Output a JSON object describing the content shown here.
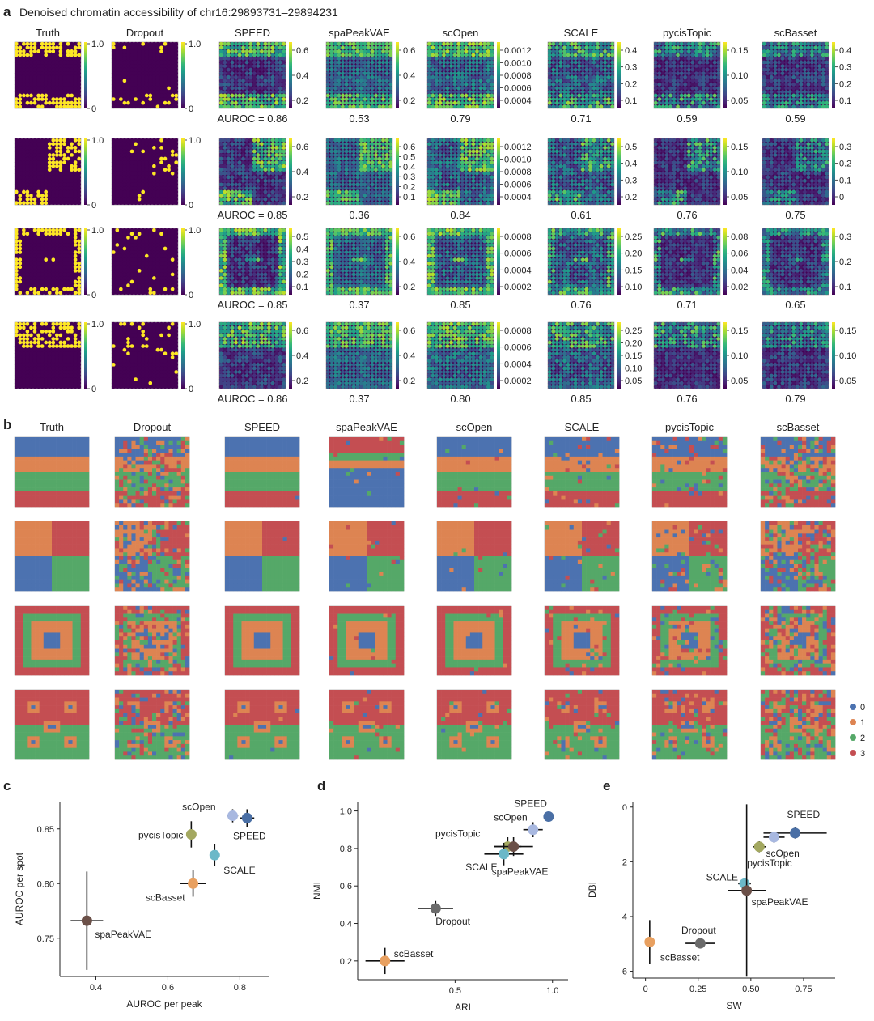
{
  "panel_a": {
    "label": "a",
    "title": "Denoised chromatin accessibility of chr16:29893731–29894231",
    "methods": [
      "Truth",
      "Dropout",
      "SPEED",
      "spaPeakVAE",
      "scOpen",
      "SCALE",
      "pycisTopic",
      "scBasset"
    ],
    "patterns": [
      "stripes",
      "quadrants",
      "nested-squares",
      "spots"
    ],
    "colorbars": [
      [
        [
          "1.0",
          "0"
        ],
        [
          "1.0",
          "0"
        ],
        [
          "0.6",
          "0.4",
          "0.2"
        ],
        [
          "0.6",
          "0.4",
          "0.2"
        ],
        [
          "0.0012",
          "0.0010",
          "0.0008",
          "0.0006",
          "0.0004"
        ],
        [
          "0.4",
          "0.3",
          "0.2",
          "0.1"
        ],
        [
          "0.15",
          "0.10",
          "0.05"
        ],
        [
          "0.4",
          "0.3",
          "0.2",
          "0.1"
        ]
      ],
      [
        [
          "1.0",
          "0"
        ],
        [
          "1.0",
          "0"
        ],
        [
          "0.6",
          "0.4",
          "0.2"
        ],
        [
          "0.6",
          "0.5",
          "0.4",
          "0.3",
          "0.2",
          "0.1"
        ],
        [
          "0.0012",
          "0.0010",
          "0.0008",
          "0.0006",
          "0.0004"
        ],
        [
          "0.5",
          "0.4",
          "0.3",
          "0.2"
        ],
        [
          "0.15",
          "0.10",
          "0.05"
        ],
        [
          "0.3",
          "0.2",
          "0.1",
          "0"
        ]
      ],
      [
        [
          "1.0",
          "0"
        ],
        [
          "1.0",
          "0"
        ],
        [
          "0.5",
          "0.4",
          "0.3",
          "0.2",
          "0.1"
        ],
        [
          "0.6",
          "0.4",
          "0.2"
        ],
        [
          "0.0008",
          "0.0006",
          "0.0004",
          "0.0002"
        ],
        [
          "0.25",
          "0.20",
          "0.15",
          "0.10"
        ],
        [
          "0.08",
          "0.06",
          "0.04",
          "0.02"
        ],
        [
          "0.3",
          "0.2",
          "0.1"
        ]
      ],
      [
        [
          "1.0",
          "0"
        ],
        [
          "1.0",
          "0"
        ],
        [
          "0.6",
          "0.4",
          "0.2"
        ],
        [
          "0.6",
          "0.4",
          "0.2"
        ],
        [
          "0.0008",
          "0.0006",
          "0.0004",
          "0.0002"
        ],
        [
          "0.25",
          "0.20",
          "0.15",
          "0.10",
          "0.05"
        ],
        [
          "0.15",
          "0.10",
          "0.05"
        ],
        [
          "0.15",
          "0.10",
          "0.05"
        ]
      ]
    ],
    "auroc": [
      [
        "AUROC = 0.86",
        "0.53",
        "0.79",
        "0.71",
        "0.59",
        "0.59"
      ],
      [
        "AUROC = 0.85",
        "0.36",
        "0.84",
        "0.61",
        "0.76",
        "0.75"
      ],
      [
        "AUROC = 0.85",
        "0.37",
        "0.85",
        "0.76",
        "0.71",
        "0.65"
      ],
      [
        "AUROC = 0.86",
        "0.37",
        "0.80",
        "0.85",
        "0.76",
        "0.79"
      ]
    ]
  },
  "panel_b": {
    "label": "b",
    "methods": [
      "Truth",
      "Dropout",
      "SPEED",
      "spaPeakVAE",
      "scOpen",
      "SCALE",
      "pycisTopic",
      "scBasset"
    ],
    "legend": [
      "0",
      "1",
      "2",
      "3"
    ],
    "cluster_colors": [
      "#4c72b0",
      "#dd8452",
      "#55a868",
      "#c44e52"
    ]
  },
  "colors": {
    "viridis_low": "#440154",
    "viridis_high": "#fde725",
    "axis": "#222222"
  },
  "panel_c": {
    "label": "c",
    "chart_data": {
      "type": "scatter",
      "xlabel": "AUROC per peak",
      "ylabel": "AUROC per spot",
      "xticks": [
        "0.4",
        "0.6",
        "0.8"
      ],
      "yticks": [
        "0.75",
        "0.80",
        "0.85"
      ],
      "xlim": [
        0.3,
        0.88
      ],
      "ylim": [
        0.715,
        0.875
      ],
      "points": [
        {
          "label": "SPEED",
          "x": 0.82,
          "y": 0.86,
          "xerr": 0.02,
          "yerr": 0.008,
          "color": "#4a6fa5"
        },
        {
          "label": "scOpen",
          "x": 0.78,
          "y": 0.862,
          "xerr": 0.015,
          "yerr": 0.006,
          "color": "#a8b8e0"
        },
        {
          "label": "pycisTopic",
          "x": 0.665,
          "y": 0.845,
          "xerr": 0.005,
          "yerr": 0.012,
          "color": "#a3a860"
        },
        {
          "label": "SCALE",
          "x": 0.73,
          "y": 0.826,
          "xerr": 0.005,
          "yerr": 0.01,
          "color": "#6bb8c8"
        },
        {
          "label": "scBasset",
          "x": 0.67,
          "y": 0.8,
          "xerr": 0.035,
          "yerr": 0.012,
          "color": "#e8a060"
        },
        {
          "label": "spaPeakVAE",
          "x": 0.375,
          "y": 0.766,
          "xerr": 0.045,
          "yerr": 0.045,
          "color": "#6b5048"
        }
      ]
    }
  },
  "panel_d": {
    "label": "d",
    "chart_data": {
      "type": "scatter",
      "xlabel": "ARI",
      "ylabel": "NMI",
      "xticks": [
        "0.5",
        "1.0"
      ],
      "yticks": [
        "0.2",
        "0.4",
        "0.6",
        "0.8",
        "1.0"
      ],
      "xlim": [
        0.0,
        1.08
      ],
      "ylim": [
        0.1,
        1.05
      ],
      "points": [
        {
          "label": "SPEED",
          "x": 0.98,
          "y": 0.97,
          "xerr": 0.01,
          "yerr": 0.02,
          "color": "#4a6fa5"
        },
        {
          "label": "scOpen",
          "x": 0.9,
          "y": 0.9,
          "xerr": 0.05,
          "yerr": 0.04,
          "color": "#a8b8e0"
        },
        {
          "label": "pycisTopic",
          "x": 0.77,
          "y": 0.81,
          "xerr": 0.07,
          "yerr": 0.05,
          "color": "#a3a860"
        },
        {
          "label": "spaPeakVAE",
          "x": 0.8,
          "y": 0.81,
          "xerr": 0.1,
          "yerr": 0.05,
          "color": "#6b5048"
        },
        {
          "label": "SCALE",
          "x": 0.75,
          "y": 0.77,
          "xerr": 0.1,
          "yerr": 0.06,
          "color": "#6bb8c8"
        },
        {
          "label": "Dropout",
          "x": 0.4,
          "y": 0.48,
          "xerr": 0.09,
          "yerr": 0.04,
          "color": "#6b6b6b"
        },
        {
          "label": "scBasset",
          "x": 0.14,
          "y": 0.2,
          "xerr": 0.1,
          "yerr": 0.07,
          "color": "#e8a060"
        }
      ]
    }
  },
  "panel_e": {
    "label": "e",
    "chart_data": {
      "type": "scatter",
      "xlabel": "SW",
      "ylabel": "DBI",
      "xticks": [
        "0",
        "0.25",
        "0.50",
        "0.75"
      ],
      "yticks": [
        "0",
        "2",
        "4",
        "6"
      ],
      "xlim": [
        -0.06,
        0.9
      ],
      "ylim": [
        -0.2,
        6.25
      ],
      "y_inverted": true,
      "points": [
        {
          "label": "SPEED",
          "x": 0.71,
          "y": 0.95,
          "xerr": 0.15,
          "yerr": 0.2,
          "color": "#4a6fa5"
        },
        {
          "label": "scOpen",
          "x": 0.61,
          "y": 1.1,
          "xerr": 0.05,
          "yerr": 0.2,
          "color": "#a8b8e0"
        },
        {
          "label": "pycisTopic",
          "x": 0.54,
          "y": 1.45,
          "xerr": 0.03,
          "yerr": 0.2,
          "color": "#a3a860"
        },
        {
          "label": "SCALE",
          "x": 0.47,
          "y": 2.8,
          "xerr": 0.03,
          "yerr": 0.1,
          "color": "#6bb8c8"
        },
        {
          "label": "spaPeakVAE",
          "x": 0.48,
          "y": 3.05,
          "xerr": 0.09,
          "yerr": 3.15,
          "color": "#6b5048"
        },
        {
          "label": "Dropout",
          "x": 0.26,
          "y": 4.98,
          "xerr": 0.07,
          "yerr": 0.1,
          "color": "#6b6b6b"
        },
        {
          "label": "scBasset",
          "x": 0.02,
          "y": 4.93,
          "xerr": 0.01,
          "yerr": 0.8,
          "color": "#e8a060"
        }
      ]
    }
  }
}
